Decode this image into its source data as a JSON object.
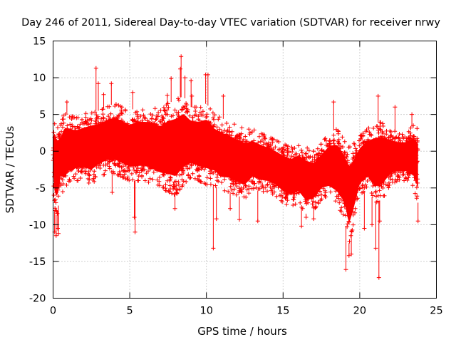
{
  "chart_data": {
    "type": "scatter",
    "title": "Day 246 of 2011, Sidereal Day-to-day VTEC variation (SDTVAR) for receiver nrwy",
    "xlabel": "GPS time / hours",
    "ylabel": "SDTVAR / TECUs",
    "xlim": [
      0,
      25
    ],
    "ylim": [
      -20,
      15
    ],
    "xticks": [
      0,
      5,
      10,
      15,
      20,
      25
    ],
    "yticks": [
      -20,
      -15,
      -10,
      -5,
      0,
      5,
      10,
      15
    ],
    "grid": true,
    "marker": "+",
    "series": [
      {
        "name": "SDTVAR",
        "color": "#ff0000",
        "envelope": {
          "x": [
            0.0,
            0.1,
            0.25,
            0.5,
            0.75,
            1.0,
            1.5,
            2.0,
            2.5,
            3.0,
            3.5,
            4.0,
            4.5,
            5.0,
            5.5,
            6.0,
            6.5,
            7.0,
            7.5,
            8.0,
            8.5,
            9.0,
            9.5,
            10.0,
            10.5,
            11.0,
            11.5,
            12.0,
            12.5,
            13.0,
            13.5,
            14.0,
            14.5,
            15.0,
            15.5,
            16.0,
            16.5,
            17.0,
            17.5,
            18.0,
            18.5,
            19.0,
            19.3,
            19.6,
            20.0,
            20.5,
            21.0,
            21.5,
            22.0,
            22.5,
            23.0,
            23.5,
            23.8
          ],
          "upper": [
            3.5,
            5.0,
            4.0,
            3.5,
            5.5,
            5.0,
            4.5,
            5.0,
            5.5,
            5.5,
            6.0,
            6.5,
            6.0,
            5.5,
            6.0,
            6.0,
            6.0,
            5.5,
            6.5,
            7.0,
            7.5,
            6.0,
            6.0,
            6.5,
            5.0,
            4.5,
            4.0,
            3.5,
            3.0,
            3.0,
            2.5,
            2.0,
            1.5,
            1.0,
            0.5,
            1.0,
            0.5,
            0.0,
            1.0,
            2.5,
            3.0,
            1.5,
            0.5,
            1.0,
            2.0,
            3.0,
            4.0,
            4.0,
            3.0,
            2.5,
            2.5,
            3.5,
            3.0
          ],
          "lower": [
            -4.0,
            -8.0,
            -9.0,
            -5.0,
            -6.0,
            -4.5,
            -4.0,
            -4.0,
            -4.5,
            -3.5,
            -3.0,
            -3.0,
            -3.5,
            -4.0,
            -4.0,
            -4.0,
            -4.5,
            -5.0,
            -5.5,
            -6.0,
            -4.5,
            -3.5,
            -4.0,
            -4.5,
            -4.5,
            -5.5,
            -5.5,
            -6.0,
            -6.5,
            -5.0,
            -5.5,
            -5.5,
            -6.0,
            -7.0,
            -7.5,
            -7.0,
            -8.5,
            -8.0,
            -6.5,
            -6.5,
            -7.5,
            -9.0,
            -12.5,
            -10.0,
            -6.0,
            -5.0,
            -7.0,
            -6.5,
            -4.5,
            -4.0,
            -4.0,
            -5.0,
            -7.0
          ]
        },
        "outliers": [
          [
            0.1,
            -11.0
          ],
          [
            0.2,
            -11.5
          ],
          [
            0.3,
            -10.5
          ],
          [
            0.35,
            -11.2
          ],
          [
            0.9,
            6.7
          ],
          [
            2.8,
            11.3
          ],
          [
            2.95,
            9.2
          ],
          [
            3.3,
            7.7
          ],
          [
            3.8,
            9.2
          ],
          [
            3.85,
            -5.6
          ],
          [
            5.2,
            8.0
          ],
          [
            5.35,
            -11.0
          ],
          [
            5.3,
            -9.0
          ],
          [
            7.45,
            7.6
          ],
          [
            7.7,
            9.9
          ],
          [
            7.95,
            -7.8
          ],
          [
            8.1,
            -5.3
          ],
          [
            8.3,
            11.2
          ],
          [
            8.35,
            12.9
          ],
          [
            8.6,
            10.0
          ],
          [
            9.0,
            9.6
          ],
          [
            9.05,
            7.5
          ],
          [
            9.95,
            10.4
          ],
          [
            10.1,
            10.4
          ],
          [
            10.45,
            -13.2
          ],
          [
            10.65,
            -9.2
          ],
          [
            11.1,
            7.5
          ],
          [
            11.55,
            -7.8
          ],
          [
            12.15,
            -9.3
          ],
          [
            13.35,
            -9.5
          ],
          [
            16.2,
            -10.2
          ],
          [
            16.5,
            -9.0
          ],
          [
            17.0,
            -9.2
          ],
          [
            18.3,
            6.7
          ],
          [
            19.1,
            -16.1
          ],
          [
            19.3,
            -14.2
          ],
          [
            19.45,
            -14.0
          ],
          [
            20.3,
            -10.5
          ],
          [
            20.8,
            -10.0
          ],
          [
            20.9,
            1.5
          ],
          [
            21.05,
            -13.2
          ],
          [
            21.2,
            7.5
          ],
          [
            21.25,
            -17.2
          ],
          [
            21.3,
            -9.5
          ],
          [
            22.3,
            6.0
          ],
          [
            23.4,
            5.0
          ],
          [
            23.8,
            -9.5
          ]
        ]
      }
    ]
  }
}
